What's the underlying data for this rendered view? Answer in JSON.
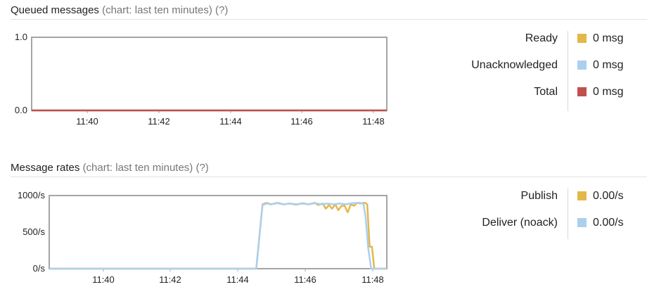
{
  "queued": {
    "title": "Queued messages",
    "subtitle": "(chart: last ten minutes)",
    "help": "(?)",
    "legend": [
      {
        "name": "Ready",
        "value": "0 msg",
        "color": "#e2b848"
      },
      {
        "name": "Unacknowledged",
        "value": "0 msg",
        "color": "#abcfef"
      },
      {
        "name": "Total",
        "value": "0 msg",
        "color": "#c0504d"
      }
    ]
  },
  "rates": {
    "title": "Message rates",
    "subtitle": "(chart: last ten minutes)",
    "help": "(?)",
    "legend": [
      {
        "name": "Publish",
        "value": "0.00/s",
        "color": "#e2b848"
      },
      {
        "name": "Deliver (noack)",
        "value": "0.00/s",
        "color": "#abcfef"
      }
    ]
  },
  "chart_data": [
    {
      "type": "line",
      "ylim": [
        0,
        1.0
      ],
      "xlim": [
        11.6,
        11.816
      ],
      "yticks": [
        "0.0",
        "1.0"
      ],
      "xticks": [
        "11:40",
        "11:42",
        "11:44",
        "11:46",
        "11:48"
      ],
      "series": [
        {
          "name": "Ready",
          "color": "#e2b848",
          "x": [
            11.6,
            11.816
          ],
          "y": [
            0,
            0
          ]
        },
        {
          "name": "Unacknowledged",
          "color": "#abcfef",
          "x": [
            11.6,
            11.816
          ],
          "y": [
            0,
            0
          ]
        },
        {
          "name": "Total",
          "color": "#c0504d",
          "x": [
            11.6,
            11.816
          ],
          "y": [
            0,
            0
          ]
        }
      ]
    },
    {
      "type": "line",
      "ylim": [
        0,
        1000
      ],
      "xlim": [
        11.6,
        11.816
      ],
      "yticks": [
        "0/s",
        "500/s",
        "1000/s"
      ],
      "xticks": [
        "11:40",
        "11:42",
        "11:44",
        "11:46",
        "11:48"
      ],
      "series": [
        {
          "name": "Publish",
          "color": "#e2b848",
          "x": [
            11.6,
            11.7325,
            11.7365,
            11.739,
            11.742,
            11.746,
            11.75,
            11.754,
            11.758,
            11.762,
            11.766,
            11.77,
            11.772,
            11.775,
            11.777,
            11.779,
            11.781,
            11.783,
            11.785,
            11.787,
            11.789,
            11.791,
            11.793,
            11.795,
            11.797,
            11.799,
            11.801,
            11.802,
            11.8035,
            11.805,
            11.8065,
            11.808,
            11.816
          ],
          "y": [
            0,
            0,
            880,
            900,
            880,
            900,
            880,
            890,
            875,
            895,
            880,
            900,
            870,
            890,
            820,
            870,
            820,
            880,
            800,
            860,
            860,
            770,
            880,
            860,
            900,
            890,
            900,
            900,
            880,
            300,
            300,
            0,
            0
          ]
        },
        {
          "name": "Deliver (noack)",
          "color": "#abcfef",
          "x": [
            11.6,
            11.7325,
            11.7365,
            11.739,
            11.742,
            11.746,
            11.75,
            11.754,
            11.758,
            11.762,
            11.766,
            11.77,
            11.774,
            11.778,
            11.782,
            11.786,
            11.79,
            11.794,
            11.798,
            11.801,
            11.8025,
            11.804,
            11.806,
            11.816
          ],
          "y": [
            0,
            0,
            870,
            890,
            880,
            895,
            880,
            890,
            880,
            890,
            880,
            895,
            880,
            890,
            880,
            890,
            880,
            895,
            900,
            890,
            700,
            300,
            0,
            0
          ]
        }
      ]
    }
  ]
}
